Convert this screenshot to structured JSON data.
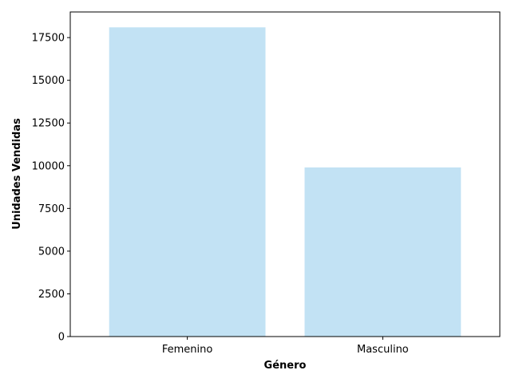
{
  "chart_data": {
    "type": "bar",
    "title": "",
    "xlabel": "Género",
    "ylabel": "Unidades Vendidas",
    "categories": [
      "Femenino",
      "Masculino"
    ],
    "values": [
      18100,
      9900
    ],
    "ylim": [
      0,
      19000
    ],
    "yticks": [
      0,
      2500,
      5000,
      7500,
      10000,
      12500,
      15000,
      17500
    ],
    "ytick_labels": [
      "0",
      "2500",
      "5000",
      "7500",
      "10000",
      "12500",
      "15000",
      "17500"
    ],
    "grid": false,
    "legend": "none",
    "colors": {
      "bar": "#c2e2f4",
      "axis": "#000000",
      "text": "#000000",
      "background": "#ffffff"
    }
  }
}
